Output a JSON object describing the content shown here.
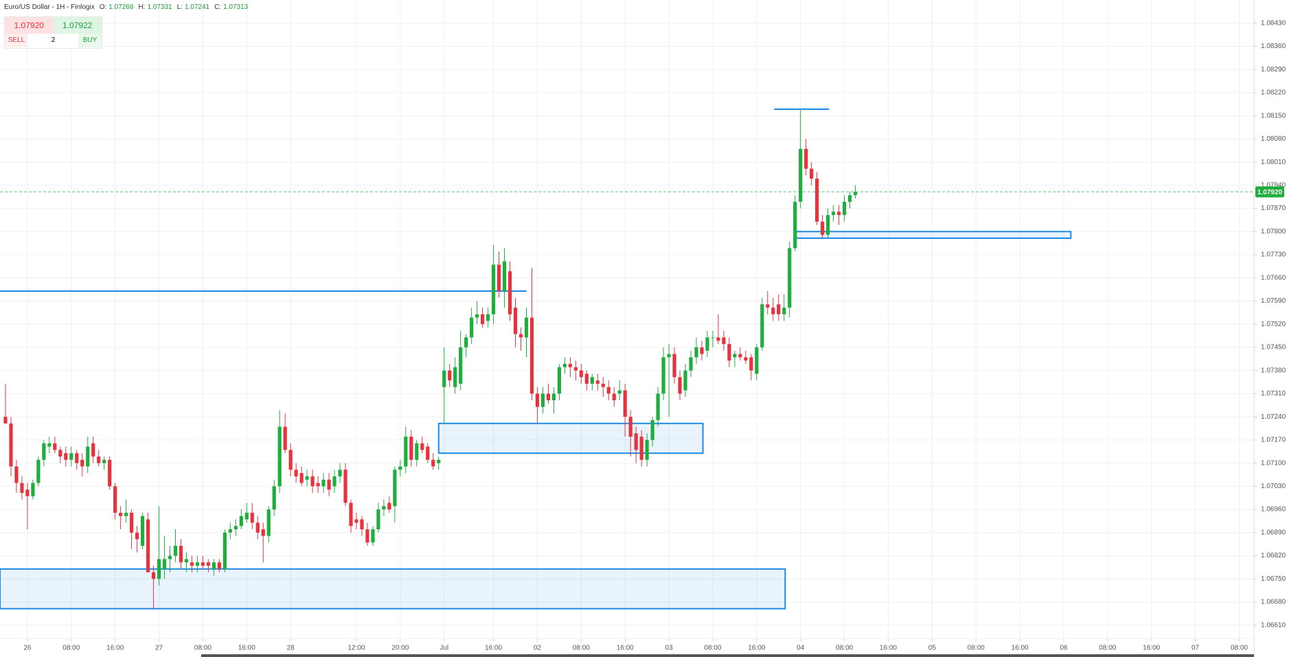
{
  "header": {
    "title": "Euro/US Dollar - 1H - Finlogix",
    "ohlc": [
      {
        "label": "O:",
        "value": "1.07268"
      },
      {
        "label": "H:",
        "value": "1.07331"
      },
      {
        "label": "L:",
        "value": "1.07241"
      },
      {
        "label": "C:",
        "value": "1.07313"
      }
    ]
  },
  "trade": {
    "sell_price": "1.07920",
    "buy_price": "1.07922",
    "sell": "SELL",
    "quantity": "2",
    "buy": "BUY"
  },
  "chart_data": {
    "type": "candlestick",
    "up_color": "#1fae3e",
    "down_color": "#e5333f",
    "grid": true,
    "x": [
      -4,
      -3,
      -2,
      -1,
      0,
      1,
      2,
      3,
      4,
      5,
      6,
      7,
      8,
      9,
      10,
      11,
      12,
      13,
      14,
      15,
      16,
      17,
      18,
      19,
      20,
      21,
      22,
      23,
      24,
      25,
      26,
      27,
      28,
      29,
      30,
      31,
      32,
      33,
      34,
      35,
      36,
      37,
      38,
      39,
      40,
      41,
      42,
      43,
      44,
      45,
      46,
      47,
      48,
      49,
      50,
      51,
      52,
      53,
      54,
      55,
      56,
      57,
      58,
      59,
      60,
      61,
      62,
      63,
      64,
      65,
      66,
      67,
      68,
      69,
      70,
      71,
      72,
      73,
      74,
      75,
      76,
      77,
      78,
      79,
      80,
      81,
      82,
      83,
      84,
      85,
      86,
      87,
      88,
      89,
      90,
      91,
      92,
      93,
      94,
      95,
      96,
      97,
      98,
      99,
      100,
      101,
      102,
      103,
      104,
      105,
      106,
      107,
      108,
      109,
      110,
      111,
      112,
      113,
      114,
      115,
      116,
      117,
      118,
      119,
      120,
      121,
      122,
      123,
      124,
      125,
      126,
      127,
      128,
      129,
      130,
      131,
      132,
      133,
      134,
      135,
      136,
      137,
      138,
      139,
      140,
      141,
      142,
      143,
      144,
      145,
      146,
      147,
      148,
      149,
      150,
      151
    ],
    "ohlc": [
      [
        1.0724,
        1.0734,
        1.0722,
        1.0722
      ],
      [
        1.0722,
        1.0724,
        1.0706,
        1.0709
      ],
      [
        1.0709,
        1.0711,
        1.0701,
        1.0704
      ],
      [
        1.0704,
        1.0706,
        1.0699,
        1.0701
      ],
      [
        1.0702,
        1.0704,
        1.069,
        1.07
      ],
      [
        1.07,
        1.0705,
        1.0699,
        1.0704
      ],
      [
        1.0704,
        1.0712,
        1.0703,
        1.0711
      ],
      [
        1.0711,
        1.0717,
        1.0709,
        1.0716
      ],
      [
        1.0715,
        1.0718,
        1.0713,
        1.0716
      ],
      [
        1.0716,
        1.0718,
        1.0713,
        1.0714
      ],
      [
        1.0714,
        1.0715,
        1.071,
        1.0712
      ],
      [
        1.0713,
        1.0715,
        1.0709,
        1.0711
      ],
      [
        1.0711,
        1.0715,
        1.0709,
        1.0713
      ],
      [
        1.0713,
        1.0714,
        1.0708,
        1.071
      ],
      [
        1.0711,
        1.0713,
        1.0706,
        1.0709
      ],
      [
        1.0709,
        1.0718,
        1.0707,
        1.0715
      ],
      [
        1.0716,
        1.0718,
        1.071,
        1.0712
      ],
      [
        1.0712,
        1.0714,
        1.0709,
        1.071
      ],
      [
        1.071,
        1.0712,
        1.0708,
        1.0711
      ],
      [
        1.0711,
        1.0712,
        1.0702,
        1.0703
      ],
      [
        1.0703,
        1.0704,
        1.0693,
        1.0695
      ],
      [
        1.0695,
        1.0697,
        1.069,
        1.0694
      ],
      [
        1.0694,
        1.0699,
        1.0692,
        1.0695
      ],
      [
        1.0695,
        1.0696,
        1.0684,
        1.0689
      ],
      [
        1.0689,
        1.0691,
        1.0683,
        1.0687
      ],
      [
        1.0685,
        1.0695,
        1.0684,
        1.0694
      ],
      [
        1.0693,
        1.0695,
        1.0677,
        1.0677
      ],
      [
        1.0677,
        1.0679,
        1.0666,
        1.0675
      ],
      [
        1.0675,
        1.0697,
        1.0673,
        1.0681
      ],
      [
        1.0678,
        1.0688,
        1.0675,
        1.0681
      ],
      [
        1.0681,
        1.0685,
        1.0677,
        1.0682
      ],
      [
        1.0682,
        1.069,
        1.068,
        1.0685
      ],
      [
        1.0685,
        1.0687,
        1.0678,
        1.068
      ],
      [
        1.068,
        1.0683,
        1.0677,
        1.0681
      ],
      [
        1.068,
        1.0682,
        1.0677,
        1.0679
      ],
      [
        1.0679,
        1.0682,
        1.0677,
        1.068
      ],
      [
        1.068,
        1.0682,
        1.0678,
        1.0679
      ],
      [
        1.068,
        1.0681,
        1.0677,
        1.0679
      ],
      [
        1.0678,
        1.0681,
        1.0676,
        1.068
      ],
      [
        1.068,
        1.0681,
        1.0677,
        1.0678
      ],
      [
        1.0678,
        1.069,
        1.0677,
        1.0689
      ],
      [
        1.0689,
        1.0692,
        1.0687,
        1.069
      ],
      [
        1.069,
        1.0693,
        1.0688,
        1.0691
      ],
      [
        1.0691,
        1.0696,
        1.069,
        1.0694
      ],
      [
        1.0693,
        1.0698,
        1.0692,
        1.0695
      ],
      [
        1.0695,
        1.0698,
        1.069,
        1.0692
      ],
      [
        1.0692,
        1.0694,
        1.0687,
        1.0689
      ],
      [
        1.069,
        1.0692,
        1.068,
        1.0688
      ],
      [
        1.0688,
        1.0697,
        1.0686,
        1.0696
      ],
      [
        1.0696,
        1.0705,
        1.0694,
        1.0703
      ],
      [
        1.0703,
        1.0726,
        1.0701,
        1.0721
      ],
      [
        1.0721,
        1.0725,
        1.0713,
        1.0714
      ],
      [
        1.0714,
        1.0716,
        1.0706,
        1.0708
      ],
      [
        1.0708,
        1.071,
        1.0704,
        1.0706
      ],
      [
        1.0707,
        1.0709,
        1.0703,
        1.0704
      ],
      [
        1.0705,
        1.0708,
        1.0703,
        1.0706
      ],
      [
        1.0706,
        1.0708,
        1.0701,
        1.0703
      ],
      [
        1.0704,
        1.0706,
        1.0701,
        1.0703
      ],
      [
        1.0703,
        1.0707,
        1.0701,
        1.0705
      ],
      [
        1.0705,
        1.0707,
        1.07,
        1.0702
      ],
      [
        1.0703,
        1.0708,
        1.0701,
        1.0706
      ],
      [
        1.0706,
        1.071,
        1.0704,
        1.0708
      ],
      [
        1.0708,
        1.071,
        1.0697,
        1.0698
      ],
      [
        1.0698,
        1.0699,
        1.0689,
        1.0691
      ],
      [
        1.0693,
        1.0695,
        1.069,
        1.0692
      ],
      [
        1.0693,
        1.0694,
        1.0688,
        1.069
      ],
      [
        1.069,
        1.0692,
        1.0685,
        1.0686
      ],
      [
        1.0686,
        1.0691,
        1.0685,
        1.069
      ],
      [
        1.069,
        1.0698,
        1.0689,
        1.0696
      ],
      [
        1.0696,
        1.0699,
        1.0694,
        1.0697
      ],
      [
        1.0698,
        1.07,
        1.0695,
        1.0696
      ],
      [
        1.0697,
        1.0709,
        1.0692,
        1.0708
      ],
      [
        1.0708,
        1.0711,
        1.0706,
        1.0709
      ],
      [
        1.0709,
        1.0721,
        1.0707,
        1.0718
      ],
      [
        1.0718,
        1.072,
        1.0709,
        1.0711
      ],
      [
        1.0711,
        1.0717,
        1.0709,
        1.0716
      ],
      [
        1.0716,
        1.0718,
        1.0713,
        1.0714
      ],
      [
        1.0715,
        1.0716,
        1.071,
        1.0711
      ],
      [
        1.0711,
        1.0713,
        1.0708,
        1.0709
      ],
      [
        1.071,
        1.0712,
        1.0708,
        1.0711
      ],
      [
        1.0733,
        1.0745,
        1.0722,
        1.0738
      ],
      [
        1.0738,
        1.074,
        1.0733,
        1.0735
      ],
      [
        1.0733,
        1.0742,
        1.0731,
        1.0739
      ],
      [
        1.0734,
        1.075,
        1.0732,
        1.0745
      ],
      [
        1.0745,
        1.0749,
        1.0742,
        1.0748
      ],
      [
        1.0748,
        1.0757,
        1.0746,
        1.0754
      ],
      [
        1.0754,
        1.0759,
        1.0752,
        1.0755
      ],
      [
        1.0755,
        1.0757,
        1.0751,
        1.0752
      ],
      [
        1.0753,
        1.0757,
        1.0751,
        1.0755
      ],
      [
        1.0755,
        1.0776,
        1.0752,
        1.077
      ],
      [
        1.077,
        1.0774,
        1.076,
        1.0762
      ],
      [
        1.0762,
        1.0775,
        1.0757,
        1.0771
      ],
      [
        1.0768,
        1.0771,
        1.0753,
        1.0755
      ],
      [
        1.0757,
        1.076,
        1.0745,
        1.0749
      ],
      [
        1.0749,
        1.0751,
        1.0744,
        1.0748
      ],
      [
        1.0748,
        1.0757,
        1.0742,
        1.0754
      ],
      [
        1.0754,
        1.0769,
        1.0729,
        1.0731
      ],
      [
        1.0731,
        1.0733,
        1.0722,
        1.0727
      ],
      [
        1.0727,
        1.0733,
        1.0725,
        1.0731
      ],
      [
        1.0731,
        1.0734,
        1.0728,
        1.0729
      ],
      [
        1.0729,
        1.0733,
        1.0725,
        1.0731
      ],
      [
        1.0731,
        1.074,
        1.0729,
        1.0739
      ],
      [
        1.0739,
        1.0742,
        1.0737,
        1.074
      ],
      [
        1.074,
        1.0742,
        1.0736,
        1.0739
      ],
      [
        1.0739,
        1.0741,
        1.0735,
        1.0738
      ],
      [
        1.0738,
        1.074,
        1.0734,
        1.0736
      ],
      [
        1.0737,
        1.0738,
        1.0732,
        1.0734
      ],
      [
        1.0734,
        1.0737,
        1.0732,
        1.0736
      ],
      [
        1.0735,
        1.0737,
        1.0732,
        1.0734
      ],
      [
        1.0734,
        1.0736,
        1.073,
        1.0733
      ],
      [
        1.0733,
        1.0735,
        1.0729,
        1.0731
      ],
      [
        1.0731,
        1.0733,
        1.0727,
        1.0729
      ],
      [
        1.0731,
        1.0735,
        1.0729,
        1.0732
      ],
      [
        1.0732,
        1.0734,
        1.0718,
        1.0724
      ],
      [
        1.0724,
        1.0726,
        1.0712,
        1.0718
      ],
      [
        1.0719,
        1.0721,
        1.071,
        1.0714
      ],
      [
        1.0718,
        1.072,
        1.0709,
        1.0711
      ],
      [
        1.0711,
        1.0719,
        1.0709,
        1.0717
      ],
      [
        1.0717,
        1.0724,
        1.0715,
        1.0723
      ],
      [
        1.0723,
        1.0733,
        1.0721,
        1.0731
      ],
      [
        1.0731,
        1.0745,
        1.0729,
        1.0742
      ],
      [
        1.0742,
        1.0746,
        1.0724,
        1.0743
      ],
      [
        1.0743,
        1.0745,
        1.0734,
        1.0736
      ],
      [
        1.0736,
        1.0738,
        1.0729,
        1.0731
      ],
      [
        1.0732,
        1.074,
        1.073,
        1.0738
      ],
      [
        1.0738,
        1.0744,
        1.0736,
        1.0742
      ],
      [
        1.0742,
        1.0748,
        1.074,
        1.0745
      ],
      [
        1.0745,
        1.0747,
        1.0741,
        1.0743
      ],
      [
        1.0744,
        1.075,
        1.0742,
        1.0748
      ],
      [
        1.0748,
        1.075,
        1.0745,
        1.0748
      ],
      [
        1.0748,
        1.0755,
        1.0746,
        1.0747
      ],
      [
        1.0748,
        1.075,
        1.0744,
        1.0746
      ],
      [
        1.0746,
        1.0748,
        1.0739,
        1.0741
      ],
      [
        1.0742,
        1.0744,
        1.0739,
        1.0743
      ],
      [
        1.0743,
        1.0745,
        1.0741,
        1.0742
      ],
      [
        1.0742,
        1.0744,
        1.074,
        1.0741
      ],
      [
        1.0742,
        1.0743,
        1.0735,
        1.0738
      ],
      [
        1.0737,
        1.0746,
        1.0735,
        1.0745
      ],
      [
        1.0745,
        1.076,
        1.0744,
        1.0758
      ],
      [
        1.0758,
        1.0762,
        1.0755,
        1.0757
      ],
      [
        1.0757,
        1.076,
        1.0753,
        1.0755
      ],
      [
        1.0758,
        1.0761,
        1.0753,
        1.0755
      ],
      [
        1.0755,
        1.0761,
        1.0753,
        1.0757
      ],
      [
        1.0757,
        1.0777,
        1.0754,
        1.0775
      ],
      [
        1.0775,
        1.0791,
        1.0774,
        1.0789
      ],
      [
        1.0789,
        1.0817,
        1.0787,
        1.0805
      ],
      [
        1.0805,
        1.0808,
        1.0797,
        1.0799
      ],
      [
        1.0799,
        1.0801,
        1.0794,
        1.0796
      ],
      [
        1.0796,
        1.0798,
        1.0782,
        1.0783
      ],
      [
        1.0783,
        1.0785,
        1.0778,
        1.0779
      ],
      [
        1.0779,
        1.0787,
        1.0778,
        1.0785
      ],
      [
        1.0785,
        1.0788,
        1.0783,
        1.0786
      ],
      [
        1.0786,
        1.0788,
        1.0782,
        1.0785
      ],
      [
        1.0785,
        1.0791,
        1.0783,
        1.0789
      ],
      [
        1.0789,
        1.0792,
        1.0787,
        1.0791
      ],
      [
        1.0791,
        1.0794,
        1.079,
        1.0792
      ]
    ],
    "xlim": [
      -5,
      223.7
    ],
    "xticks": [
      {
        "value": 0,
        "label": "26"
      },
      {
        "value": 8,
        "label": "08:00"
      },
      {
        "value": 16,
        "label": "16:00"
      },
      {
        "value": 24,
        "label": "27"
      },
      {
        "value": 32,
        "label": "08:00"
      },
      {
        "value": 40,
        "label": "16:00"
      },
      {
        "value": 48,
        "label": "28"
      },
      {
        "value": 60,
        "label": "12:00"
      },
      {
        "value": 68,
        "label": "20:00"
      },
      {
        "value": 76,
        "label": "Jul"
      },
      {
        "value": 85,
        "label": "16:00"
      },
      {
        "value": 93,
        "label": "02"
      },
      {
        "value": 101,
        "label": "08:00"
      },
      {
        "value": 109,
        "label": "16:00"
      },
      {
        "value": 117,
        "label": "03"
      },
      {
        "value": 125,
        "label": "08:00"
      },
      {
        "value": 133,
        "label": "16:00"
      },
      {
        "value": 141,
        "label": "04"
      },
      {
        "value": 149,
        "label": "08:00"
      },
      {
        "value": 157,
        "label": "16:00"
      },
      {
        "value": 165,
        "label": "05"
      },
      {
        "value": 173,
        "label": "08:00"
      },
      {
        "value": 181,
        "label": "16:00"
      },
      {
        "value": 189,
        "label": "06"
      },
      {
        "value": 197,
        "label": "08:00"
      },
      {
        "value": 205,
        "label": "16:00"
      },
      {
        "value": 213,
        "label": "07"
      },
      {
        "value": 221,
        "label": "08:00"
      }
    ],
    "ylim": [
      1.0657,
      1.085
    ],
    "yticks": [
      {
        "value": 1.0843,
        "label": "1.08430"
      },
      {
        "value": 1.0836,
        "label": "1.08360"
      },
      {
        "value": 1.0829,
        "label": "1.08290"
      },
      {
        "value": 1.0822,
        "label": "1.08220"
      },
      {
        "value": 1.0815,
        "label": "1.08150"
      },
      {
        "value": 1.0808,
        "label": "1.08080"
      },
      {
        "value": 1.0801,
        "label": "1.08010"
      },
      {
        "value": 1.0794,
        "label": "1.07940"
      },
      {
        "value": 1.0787,
        "label": "1.07870"
      },
      {
        "value": 1.078,
        "label": "1.07800"
      },
      {
        "value": 1.0773,
        "label": "1.07730"
      },
      {
        "value": 1.0766,
        "label": "1.07660"
      },
      {
        "value": 1.0759,
        "label": "1.07590"
      },
      {
        "value": 1.0752,
        "label": "1.07520"
      },
      {
        "value": 1.0745,
        "label": "1.07450"
      },
      {
        "value": 1.0738,
        "label": "1.07380"
      },
      {
        "value": 1.0731,
        "label": "1.07310"
      },
      {
        "value": 1.0724,
        "label": "1.07240"
      },
      {
        "value": 1.0717,
        "label": "1.07170"
      },
      {
        "value": 1.071,
        "label": "1.07100"
      },
      {
        "value": 1.0703,
        "label": "1.07030"
      },
      {
        "value": 1.0696,
        "label": "1.06960"
      },
      {
        "value": 1.0689,
        "label": "1.06890"
      },
      {
        "value": 1.0682,
        "label": "1.06820"
      },
      {
        "value": 1.0675,
        "label": "1.06750"
      },
      {
        "value": 1.0668,
        "label": "1.06680"
      },
      {
        "value": 1.0661,
        "label": "1.06610"
      }
    ],
    "last_price": {
      "value": 1.0792,
      "label": "1.07920"
    },
    "drawing_color": "#1e88e5",
    "drawings": [
      {
        "kind": "hline",
        "x": [
          136.2,
          146.2
        ],
        "y": [
          1.0817
        ]
      },
      {
        "kind": "hline",
        "x": [
          -5,
          91
        ],
        "y": [
          1.0762
        ]
      },
      {
        "kind": "rect",
        "x": [
          75,
          123.2
        ],
        "y": [
          1.0713,
          1.0722
        ]
      },
      {
        "kind": "rect",
        "x": [
          -5,
          138.2
        ],
        "y": [
          1.0666,
          1.0678
        ]
      },
      {
        "kind": "rect",
        "x": [
          140.2,
          190.3
        ],
        "y": [
          1.0778,
          1.078
        ]
      }
    ]
  }
}
